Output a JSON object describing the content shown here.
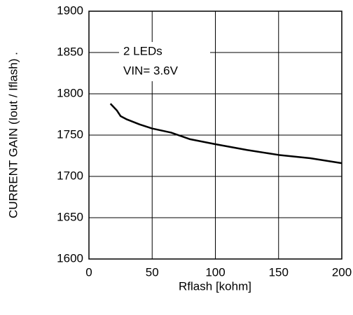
{
  "chart_data": {
    "type": "line",
    "x_label": "Rflash [kohm]",
    "y_label": "CURRENT GAIN (Iout / Iflash) .",
    "annotations": [
      "2 LEDs",
      "VIN= 3.6V"
    ],
    "x": [
      17,
      22,
      25,
      30,
      40,
      50,
      65,
      80,
      100,
      125,
      150,
      175,
      200
    ],
    "series": [
      {
        "name": "2 LEDs",
        "color": "#000000",
        "values": [
          1788,
          1780,
          1773,
          1769,
          1763,
          1758,
          1753,
          1745,
          1739,
          1732,
          1726,
          1722,
          1716
        ]
      }
    ],
    "xlim": [
      0,
      200
    ],
    "xticks": [
      0,
      50,
      100,
      150,
      200
    ],
    "ylim": [
      1600,
      1900
    ],
    "yticks": [
      1600,
      1650,
      1700,
      1750,
      1800,
      1850,
      1900
    ],
    "grid": true
  }
}
